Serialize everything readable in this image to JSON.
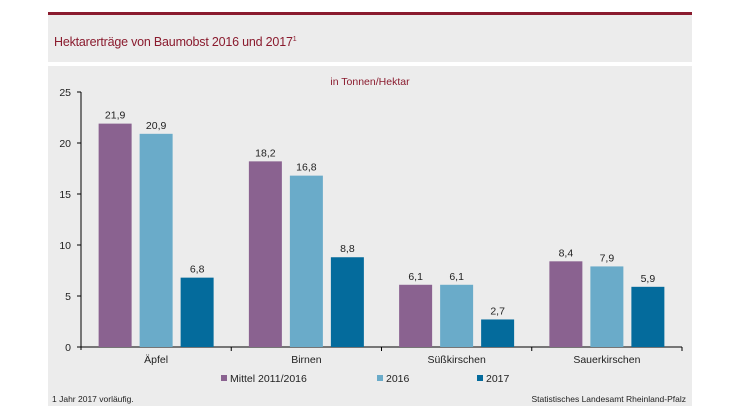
{
  "header": {
    "title": "Hektarerträge von Baumobst 2016 und 2017",
    "title_sup": "1"
  },
  "footer": {
    "footnote": "1 Jahr 2017 vorläufig.",
    "source": "Statistisches Landesamt Rheinland-Pfalz"
  },
  "chart_data": {
    "type": "bar",
    "title": "Hektarerträge von Baumobst 2016 und 2017¹",
    "subtitle": "in Tonnen/Hektar",
    "xlabel": "",
    "ylabel": "",
    "ylim": [
      0,
      25
    ],
    "yticks": [
      0,
      5,
      10,
      15,
      20,
      25
    ],
    "grid": false,
    "legend_position": "bottom",
    "categories": [
      "Äpfel",
      "Birnen",
      "Süßkirschen",
      "Sauerkirschen"
    ],
    "series": [
      {
        "name": "Mittel 2011/2016",
        "color": "#8a6290",
        "values": [
          21.9,
          18.2,
          6.1,
          8.4
        ],
        "labels": [
          "21,9",
          "18,2",
          "6,1",
          "8,4"
        ]
      },
      {
        "name": "2016",
        "color": "#6aabc9",
        "values": [
          20.9,
          16.8,
          6.1,
          7.9
        ],
        "labels": [
          "20,9",
          "16,8",
          "6,1",
          "7,9"
        ]
      },
      {
        "name": "2017",
        "color": "#046b9c",
        "values": [
          6.8,
          8.8,
          2.7,
          5.9
        ],
        "labels": [
          "6,8",
          "8,8",
          "2,7",
          "5,9"
        ]
      }
    ]
  }
}
